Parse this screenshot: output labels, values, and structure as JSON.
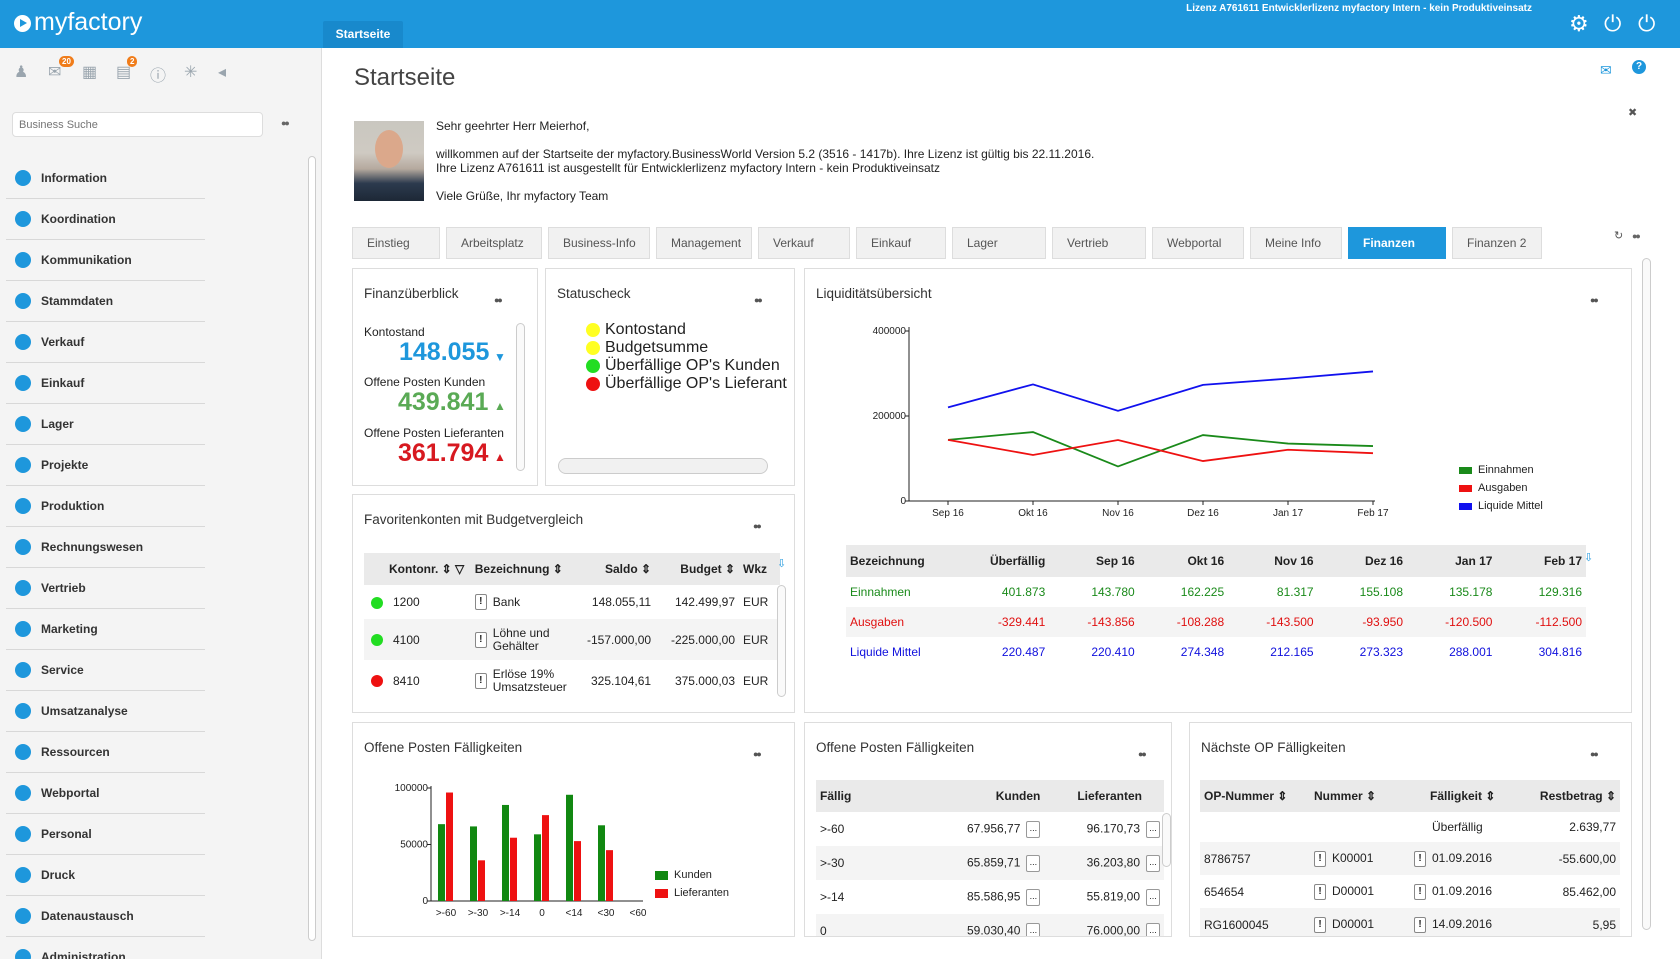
{
  "app": {
    "logo": "myfactory",
    "active_tab": "Startseite",
    "license": "Lizenz A761611 Entwicklerlizenz myfactory Intern - kein Produktiveinsatz"
  },
  "sidebar": {
    "search_placeholder": "Business Suche",
    "badges": {
      "tasks": "20",
      "notes": "2"
    },
    "items": [
      {
        "label": "Information",
        "icon": "info-icon"
      },
      {
        "label": "Koordination",
        "icon": "coordination-icon"
      },
      {
        "label": "Kommunikation",
        "icon": "chat-icon"
      },
      {
        "label": "Stammdaten",
        "icon": "database-icon"
      },
      {
        "label": "Verkauf",
        "icon": "coins-icon"
      },
      {
        "label": "Einkauf",
        "icon": "cart-icon"
      },
      {
        "label": "Lager",
        "icon": "warehouse-icon"
      },
      {
        "label": "Projekte",
        "icon": "projects-icon"
      },
      {
        "label": "Produktion",
        "icon": "production-icon"
      },
      {
        "label": "Rechnungswesen",
        "icon": "grid-icon"
      },
      {
        "label": "Vertrieb",
        "icon": "sales-icon"
      },
      {
        "label": "Marketing",
        "icon": "globe-icon"
      },
      {
        "label": "Service",
        "icon": "gear-icon"
      },
      {
        "label": "Umsatzanalyse",
        "icon": "bar-chart-icon"
      },
      {
        "label": "Ressourcen",
        "icon": "resources-icon"
      },
      {
        "label": "Webportal",
        "icon": "web-icon"
      },
      {
        "label": "Personal",
        "icon": "people-icon"
      },
      {
        "label": "Druck",
        "icon": "printer-icon"
      },
      {
        "label": "Datenaustausch",
        "icon": "exchange-icon"
      },
      {
        "label": "Administration",
        "icon": "admin-icon"
      }
    ]
  },
  "page": {
    "title": "Startseite",
    "welcome": {
      "greeting": "Sehr geehrter Herr Meierhof,",
      "line1": "willkommen auf der Startseite der myfactory.BusinessWorld Version 5.2 (3516 - 1417b). Ihre Lizenz ist gültig bis 22.11.2016.",
      "line2": "Ihre Lizenz A761611 ist ausgestellt für Entwicklerlizenz myfactory Intern - kein Produktiveinsatz",
      "signoff": "Viele Grüße, Ihr myfactory Team"
    },
    "tabs": [
      "Einstieg",
      "Arbeitsplatz",
      "Business-Info",
      "Management",
      "Verkauf",
      "Einkauf",
      "Lager",
      "Vertrieb",
      "Webportal",
      "Meine Info",
      "Finanzen",
      "Finanzen 2"
    ],
    "active_tab": "Finanzen"
  },
  "finanzueberblick": {
    "title": "Finanzüberblick",
    "kontostand_label": "Kontostand",
    "kontostand": "148.055",
    "op_kunden_label": "Offene Posten Kunden",
    "op_kunden": "439.841",
    "op_lief_label": "Offene Posten Lieferanten",
    "op_lief": "361.794",
    "colors": {
      "kontostand": "#1e97dc",
      "kunden": "#5aaa55",
      "lief": "#d71920"
    }
  },
  "statuscheck": {
    "title": "Statuscheck",
    "items": [
      {
        "label": "Kontostand",
        "color": "#ffff22"
      },
      {
        "label": "Budgetsumme",
        "color": "#ffff22"
      },
      {
        "label": "Überfällige OP's Kunden",
        "color": "#22dd22"
      },
      {
        "label": "Überfällige OP's Lieferant",
        "color": "#ee1111"
      }
    ]
  },
  "favoriten": {
    "title": "Favoritenkonten mit Budgetvergleich",
    "headers": [
      "Kontonr.",
      "Bezeichnung",
      "Saldo",
      "Budget",
      "Wkz"
    ],
    "rows": [
      {
        "status": "#22dd22",
        "konto": "1200",
        "bez": "Bank",
        "saldo": "148.055,11",
        "budget": "142.499,97",
        "wkz": "EUR"
      },
      {
        "status": "#22dd22",
        "konto": "4100",
        "bez": "Löhne und Gehälter",
        "saldo": "-157.000,00",
        "budget": "-225.000,00",
        "wkz": "EUR"
      },
      {
        "status": "#ee1111",
        "konto": "8410",
        "bez": "Erlöse 19% Umsatzsteuer",
        "saldo": "325.104,61",
        "budget": "375.000,03",
        "wkz": "EUR"
      }
    ]
  },
  "liquiditaet": {
    "title": "Liquiditätsübersicht",
    "headers": [
      "Bezeichnung",
      "Überfällig",
      "Sep 16",
      "Okt 16",
      "Nov 16",
      "Dez 16",
      "Jan 17",
      "Feb 17"
    ],
    "rows": [
      {
        "label": "Einnahmen",
        "color": "#1a8a1a",
        "values": [
          "401.873",
          "143.780",
          "162.225",
          "81.317",
          "155.108",
          "135.178",
          "129.316"
        ]
      },
      {
        "label": "Ausgaben",
        "color": "#e01010",
        "values": [
          "-329.441",
          "-143.856",
          "-108.288",
          "-143.500",
          "-93.950",
          "-120.500",
          "-112.500"
        ]
      },
      {
        "label": "Liquide Mittel",
        "color": "#1010dd",
        "values": [
          "220.487",
          "220.410",
          "274.348",
          "212.165",
          "273.323",
          "288.001",
          "304.816"
        ]
      }
    ]
  },
  "chart_data": [
    {
      "type": "line",
      "x": [
        "Sep 16",
        "Okt 16",
        "Nov 16",
        "Dez 16",
        "Jan 17",
        "Feb 17"
      ],
      "ylim": [
        0,
        400000
      ],
      "yticks": [
        "0",
        "200000",
        "400000"
      ],
      "legend": "right",
      "series": [
        {
          "name": "Einnahmen",
          "color": "#1a8a1a",
          "values": [
            143780,
            162225,
            81317,
            155108,
            135178,
            129316
          ]
        },
        {
          "name": "Ausgaben",
          "color": "#ee1111",
          "values": [
            143856,
            108288,
            143500,
            93950,
            120500,
            112500
          ]
        },
        {
          "name": "Liquide Mittel",
          "color": "#1111ee",
          "values": [
            220410,
            274348,
            212165,
            273323,
            288001,
            304816
          ]
        }
      ]
    },
    {
      "type": "bar",
      "title": "Offene Posten Fälligkeiten",
      "categories": [
        ">-60",
        ">-30",
        ">-14",
        "0",
        "<14",
        "<30",
        "<60"
      ],
      "ylim": [
        0,
        100000
      ],
      "yticks": [
        "0",
        "50000",
        "100000"
      ],
      "legend": "right",
      "series": [
        {
          "name": "Kunden",
          "color": "#118811",
          "values": [
            68000,
            66000,
            85000,
            59000,
            94000,
            67000,
            0
          ]
        },
        {
          "name": "Lieferanten",
          "color": "#ee1111",
          "values": [
            96000,
            36000,
            56000,
            76000,
            53000,
            45000,
            0
          ]
        }
      ]
    }
  ],
  "op_faelligkeiten": {
    "title": "Offene Posten Fälligkeiten",
    "headers": [
      "Fällig",
      "Kunden",
      "Lieferanten"
    ],
    "rows": [
      {
        "f": ">-60",
        "k": "67.956,77",
        "l": "96.170,73"
      },
      {
        "f": ">-30",
        "k": "65.859,71",
        "l": "36.203,80"
      },
      {
        "f": ">-14",
        "k": "85.586,95",
        "l": "55.819,00"
      },
      {
        "f": "0",
        "k": "59.030,40",
        "l": "76.000,00"
      }
    ],
    "more_btn": "..."
  },
  "naechste_op": {
    "title": "Nächste OP Fälligkeiten",
    "headers": [
      "OP-Nummer",
      "Nummer",
      "Fälligkeit",
      "Restbetrag"
    ],
    "rows": [
      {
        "op": "",
        "nr": "",
        "f": "Überfällig",
        "rest": "2.639,77"
      },
      {
        "op": "8786757",
        "nr": "K00001",
        "f": "01.09.2016",
        "rest": "-55.600,00"
      },
      {
        "op": "654654",
        "nr": "D00001",
        "f": "01.09.2016",
        "rest": "85.462,00"
      },
      {
        "op": "RG1600045",
        "nr": "D00001",
        "f": "14.09.2016",
        "rest": "5,95"
      }
    ]
  }
}
